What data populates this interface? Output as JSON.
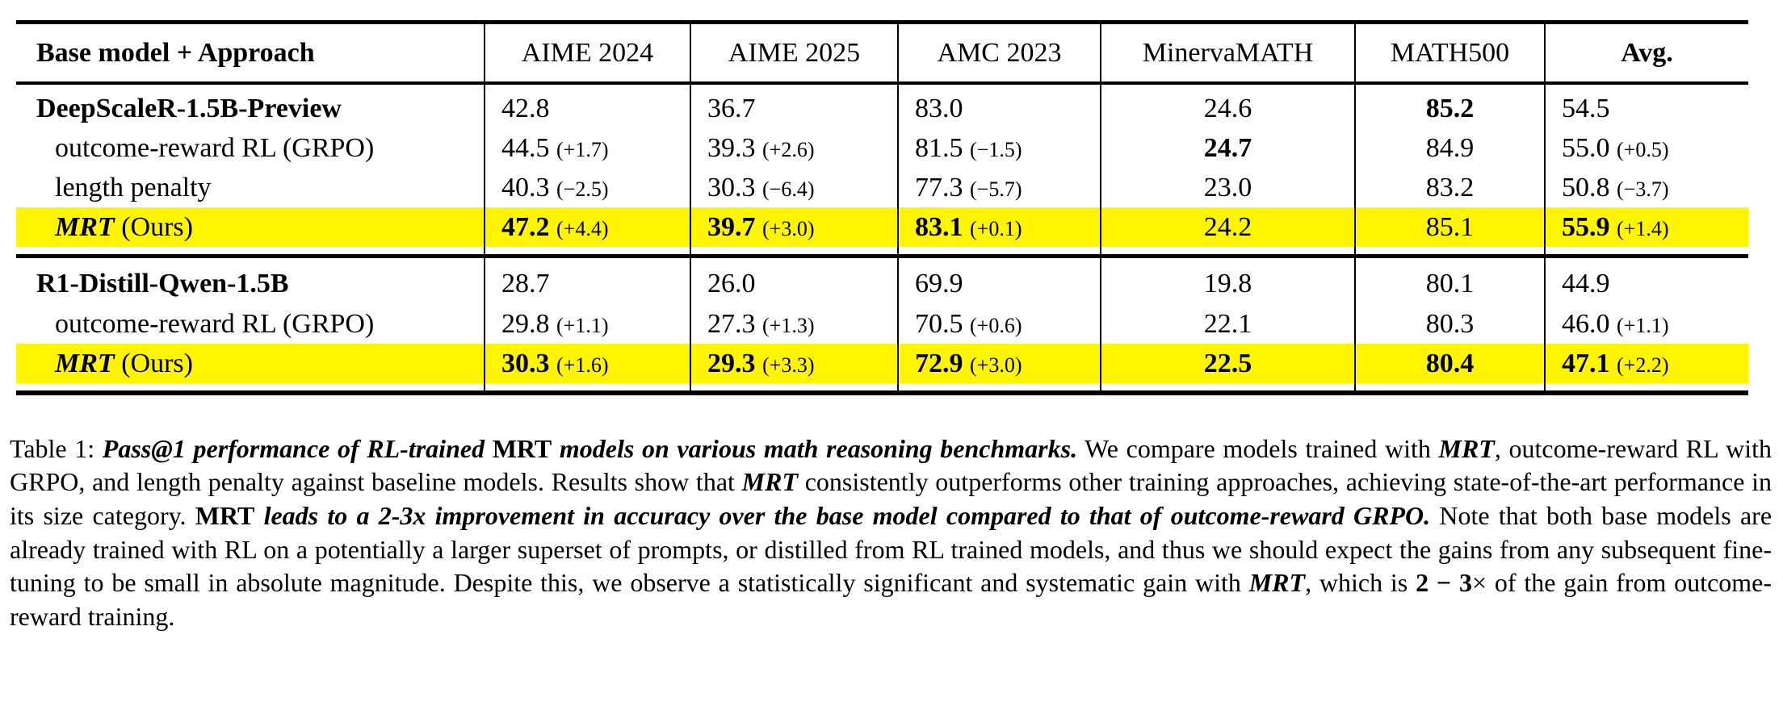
{
  "page": {
    "background_color": "#ffffff",
    "text_color": "#000000",
    "highlight_color": "#FFF500"
  },
  "table": {
    "columns": [
      {
        "label": "Base model + Approach"
      },
      {
        "label": "AIME 2024"
      },
      {
        "label": "AIME 2025"
      },
      {
        "label": "AMC 2023"
      },
      {
        "label": "MinervaMATH"
      },
      {
        "label": "MATH500"
      },
      {
        "label": "Avg."
      }
    ],
    "cell_aligns": [
      "left",
      "left",
      "left",
      "center",
      "center",
      "left"
    ],
    "sections": [
      {
        "rows": [
          {
            "label": [
              {
                "t": "DeepScaleR-1.5B-Preview",
                "s": "b"
              }
            ],
            "indent": false,
            "highlight": false,
            "cells": [
              {
                "v": "42.8"
              },
              {
                "v": "36.7"
              },
              {
                "v": "83.0"
              },
              {
                "v": "24.6"
              },
              {
                "v": "85.2",
                "b": true
              },
              {
                "v": "54.5"
              }
            ]
          },
          {
            "label": [
              {
                "t": "outcome-reward RL (GRPO)",
                "s": "r"
              }
            ],
            "indent": true,
            "highlight": false,
            "cells": [
              {
                "v": "44.5",
                "d": "(+1.7)"
              },
              {
                "v": "39.3",
                "d": "(+2.6)"
              },
              {
                "v": "81.5",
                "d": "(−1.5)"
              },
              {
                "v": "24.7",
                "b": true
              },
              {
                "v": "84.9"
              },
              {
                "v": "55.0",
                "d": "(+0.5)"
              }
            ]
          },
          {
            "label": [
              {
                "t": "length penalty",
                "s": "r"
              }
            ],
            "indent": true,
            "highlight": false,
            "cells": [
              {
                "v": "40.3",
                "d": "(−2.5)"
              },
              {
                "v": "30.3",
                "d": "(−6.4)"
              },
              {
                "v": "77.3",
                "d": "(−5.7)"
              },
              {
                "v": "23.0"
              },
              {
                "v": "83.2"
              },
              {
                "v": "50.8",
                "d": "(−3.7)"
              }
            ]
          },
          {
            "label": [
              {
                "t": "MRT",
                "s": "bi"
              },
              {
                "t": " (Ours)",
                "s": "r"
              }
            ],
            "indent": true,
            "highlight": true,
            "cells": [
              {
                "v": "47.2",
                "b": true,
                "d": "(+4.4)"
              },
              {
                "v": "39.7",
                "b": true,
                "d": "(+3.0)"
              },
              {
                "v": "83.1",
                "b": true,
                "d": "(+0.1)"
              },
              {
                "v": "24.2"
              },
              {
                "v": "85.1"
              },
              {
                "v": "55.9",
                "b": true,
                "d": "(+1.4)"
              }
            ]
          }
        ]
      },
      {
        "rows": [
          {
            "label": [
              {
                "t": "R1-Distill-Qwen-1.5B",
                "s": "b"
              }
            ],
            "indent": false,
            "highlight": false,
            "cells": [
              {
                "v": "28.7"
              },
              {
                "v": "26.0"
              },
              {
                "v": "69.9"
              },
              {
                "v": "19.8"
              },
              {
                "v": "80.1"
              },
              {
                "v": "44.9"
              }
            ]
          },
          {
            "label": [
              {
                "t": "outcome-reward RL (GRPO)",
                "s": "r"
              }
            ],
            "indent": true,
            "highlight": false,
            "cells": [
              {
                "v": "29.8",
                "d": "(+1.1)"
              },
              {
                "v": "27.3",
                "d": "(+1.3)"
              },
              {
                "v": "70.5",
                "d": "(+0.6)"
              },
              {
                "v": "22.1"
              },
              {
                "v": "80.3"
              },
              {
                "v": "46.0",
                "d": "(+1.1)"
              }
            ]
          },
          {
            "label": [
              {
                "t": "MRT",
                "s": "bi"
              },
              {
                "t": " (Ours)",
                "s": "r"
              }
            ],
            "indent": true,
            "highlight": true,
            "cells": [
              {
                "v": "30.3",
                "b": true,
                "d": "(+1.6)"
              },
              {
                "v": "29.3",
                "b": true,
                "d": "(+3.3)"
              },
              {
                "v": "72.9",
                "b": true,
                "d": "(+3.0)"
              },
              {
                "v": "22.5",
                "b": true
              },
              {
                "v": "80.4",
                "b": true
              },
              {
                "v": "47.1",
                "b": true,
                "d": "(+2.2)"
              }
            ]
          }
        ]
      }
    ]
  },
  "caption": {
    "segments": [
      {
        "t": "Table 1: ",
        "s": "r"
      },
      {
        "t": "Pass@1 performance of RL-trained ",
        "s": "bi"
      },
      {
        "t": "MRT",
        "s": "b"
      },
      {
        "t": " models on various math reasoning benchmarks.",
        "s": "bi"
      },
      {
        "t": " We compare models trained with ",
        "s": "r"
      },
      {
        "t": "MRT",
        "s": "bi"
      },
      {
        "t": ", outcome-reward RL with GRPO, and length penalty against baseline models. Results show that ",
        "s": "r"
      },
      {
        "t": "MRT",
        "s": "bi"
      },
      {
        "t": " consistently outperforms other training approaches, achieving state-of-the-art performance in its size category. ",
        "s": "r"
      },
      {
        "t": "MRT",
        "s": "b"
      },
      {
        "t": " leads to a 2-3x improvement in accuracy over the base model compared to that of outcome-reward GRPO.",
        "s": "bi"
      },
      {
        "t": " Note that both base models are already trained with RL on a potentially a larger superset of prompts, or distilled from RL trained models, and thus we should expect the gains from any subsequent fine-tuning to be small in absolute magnitude. Despite this, we observe a statistically significant and systematic gain with ",
        "s": "r"
      },
      {
        "t": "MRT",
        "s": "bi"
      },
      {
        "t": ", which is ",
        "s": "r"
      },
      {
        "t": "2 − 3",
        "s": "b"
      },
      {
        "t": "× of the gain from outcome-reward training.",
        "s": "r"
      }
    ]
  }
}
